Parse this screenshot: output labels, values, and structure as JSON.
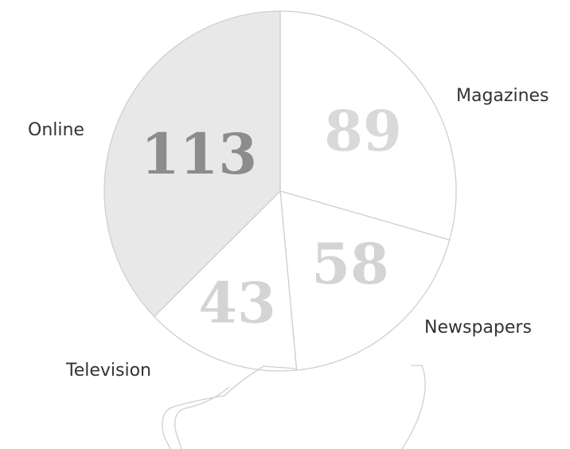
{
  "chart_data": {
    "type": "pie",
    "title": "",
    "categories": [
      "Magazines",
      "Newspapers",
      "Television",
      "Online"
    ],
    "values": [
      89,
      58,
      43,
      113
    ],
    "slice_colors": [
      "#ffffff",
      "#ffffff",
      "#ffffff",
      "#e8e8e8"
    ],
    "value_label_colors": [
      "#d9d9d9",
      "#d4d4d4",
      "#d4d4d4",
      "#8c8c8c"
    ],
    "outline_color": "#cfcfcf",
    "start_angle": "12 o'clock",
    "direction": "clockwise",
    "legend": "none"
  }
}
